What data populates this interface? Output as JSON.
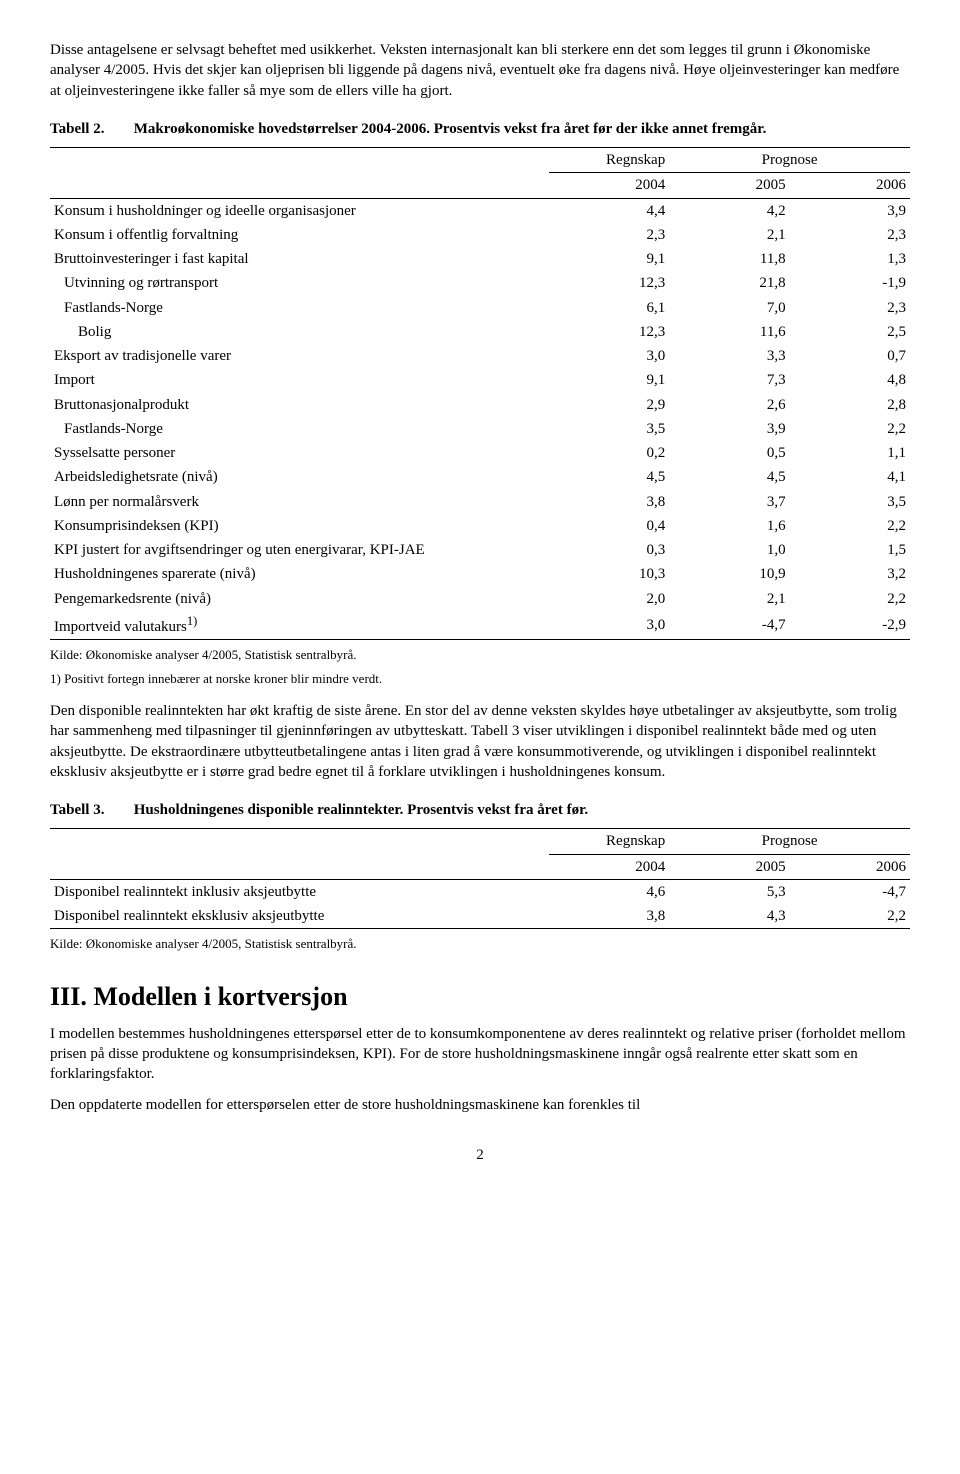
{
  "intro": {
    "p1": "Disse antagelsene er selvsagt beheftet med usikkerhet. Veksten internasjonalt kan bli sterkere enn det som legges til grunn i Økonomiske analyser 4/2005. Hvis det skjer kan oljeprisen bli liggende på dagens nivå, eventuelt øke fra dagens nivå. Høye oljeinvesteringer kan medføre at oljeinvesteringene ikke faller så mye som de ellers ville ha gjort."
  },
  "table2": {
    "label": "Tabell 2.",
    "caption": "Makroøkonomiske hovedstørrelser 2004-2006. Prosentvis vekst fra året før der ikke annet fremgår.",
    "header_group1": "Regnskap",
    "header_group2": "Prognose",
    "col_years": [
      "2004",
      "2005",
      "2006"
    ],
    "rows": [
      {
        "label": "Konsum i husholdninger og ideelle organisasjoner",
        "indent": 0,
        "v": [
          "4,4",
          "4,2",
          "3,9"
        ]
      },
      {
        "label": "Konsum i offentlig forvaltning",
        "indent": 0,
        "v": [
          "2,3",
          "2,1",
          "2,3"
        ]
      },
      {
        "label": "Bruttoinvesteringer i fast kapital",
        "indent": 0,
        "v": [
          "9,1",
          "11,8",
          "1,3"
        ]
      },
      {
        "label": "Utvinning og rørtransport",
        "indent": 1,
        "v": [
          "12,3",
          "21,8",
          "-1,9"
        ]
      },
      {
        "label": "Fastlands-Norge",
        "indent": 1,
        "v": [
          "6,1",
          "7,0",
          "2,3"
        ]
      },
      {
        "label": "Bolig",
        "indent": 2,
        "v": [
          "12,3",
          "11,6",
          "2,5"
        ]
      },
      {
        "label": "Eksport av tradisjonelle varer",
        "indent": 0,
        "v": [
          "3,0",
          "3,3",
          "0,7"
        ]
      },
      {
        "label": "Import",
        "indent": 0,
        "v": [
          "9,1",
          "7,3",
          "4,8"
        ]
      },
      {
        "label": "Bruttonasjonalprodukt",
        "indent": 0,
        "v": [
          "2,9",
          "2,6",
          "2,8"
        ]
      },
      {
        "label": "Fastlands-Norge",
        "indent": 1,
        "v": [
          "3,5",
          "3,9",
          "2,2"
        ]
      },
      {
        "label": "Sysselsatte personer",
        "indent": 0,
        "v": [
          "0,2",
          "0,5",
          "1,1"
        ]
      },
      {
        "label": "Arbeidsledighetsrate (nivå)",
        "indent": 0,
        "v": [
          "4,5",
          "4,5",
          "4,1"
        ]
      },
      {
        "label": "Lønn per normalårsverk",
        "indent": 0,
        "v": [
          "3,8",
          "3,7",
          "3,5"
        ]
      },
      {
        "label": "Konsumprisindeksen (KPI)",
        "indent": 0,
        "v": [
          "0,4",
          "1,6",
          "2,2"
        ]
      },
      {
        "label": "KPI justert for avgiftsendringer og uten energivarar, KPI-JAE",
        "indent": 0,
        "v": [
          "0,3",
          "1,0",
          "1,5"
        ]
      },
      {
        "label": "Husholdningenes sparerate (nivå)",
        "indent": 0,
        "v": [
          "10,3",
          "10,9",
          "3,2"
        ]
      },
      {
        "label": "Pengemarkedsrente (nivå)",
        "indent": 0,
        "v": [
          "2,0",
          "2,1",
          "2,2"
        ]
      },
      {
        "label": "Importveid valutakurs",
        "sup": "1)",
        "indent": 0,
        "v": [
          "3,0",
          "-4,7",
          "-2,9"
        ]
      }
    ],
    "source": "Kilde: Økonomiske analyser 4/2005, Statistisk sentralbyrå.",
    "footnote": "1) Positivt fortegn innebærer at norske kroner blir mindre verdt."
  },
  "mid": {
    "p1": "Den disponible realinntekten har økt kraftig de siste årene. En stor del av denne veksten skyldes høye utbetalinger av aksjeutbytte, som trolig har sammenheng med tilpasninger til gjeninnføringen av utbytteskatt. Tabell 3 viser utviklingen i disponibel realinntekt både med og uten aksjeutbytte. De ekstraordinære utbytteutbetalingene antas i liten grad å være konsummotiverende, og utviklingen i disponibel realinntekt eksklusiv aksjeutbytte er i større grad bedre egnet til å forklare utviklingen i husholdningenes konsum."
  },
  "table3": {
    "label": "Tabell 3.",
    "caption": "Husholdningenes disponible realinntekter. Prosentvis vekst fra året før.",
    "header_group1": "Regnskap",
    "header_group2": "Prognose",
    "col_years": [
      "2004",
      "2005",
      "2006"
    ],
    "rows": [
      {
        "label": "Disponibel realinntekt inklusiv aksjeutbytte",
        "v": [
          "4,6",
          "5,3",
          "-4,7"
        ]
      },
      {
        "label": "Disponibel realinntekt eksklusiv aksjeutbytte",
        "v": [
          "3,8",
          "4,3",
          "2,2"
        ]
      }
    ],
    "source": "Kilde: Økonomiske analyser 4/2005, Statistisk sentralbyrå."
  },
  "section3": {
    "heading": "III. Modellen i kortversjon",
    "p1": "I modellen bestemmes husholdningenes etterspørsel etter de to konsumkomponentene av deres realinntekt og relative priser (forholdet mellom prisen på disse produktene og konsumprisindeksen, KPI). For de store husholdningsmaskinene inngår også realrente etter skatt som en forklaringsfaktor.",
    "p2": "Den oppdaterte modellen for etterspørselen etter de store husholdningsmaskinene kan forenkles til"
  },
  "page_number": "2"
}
